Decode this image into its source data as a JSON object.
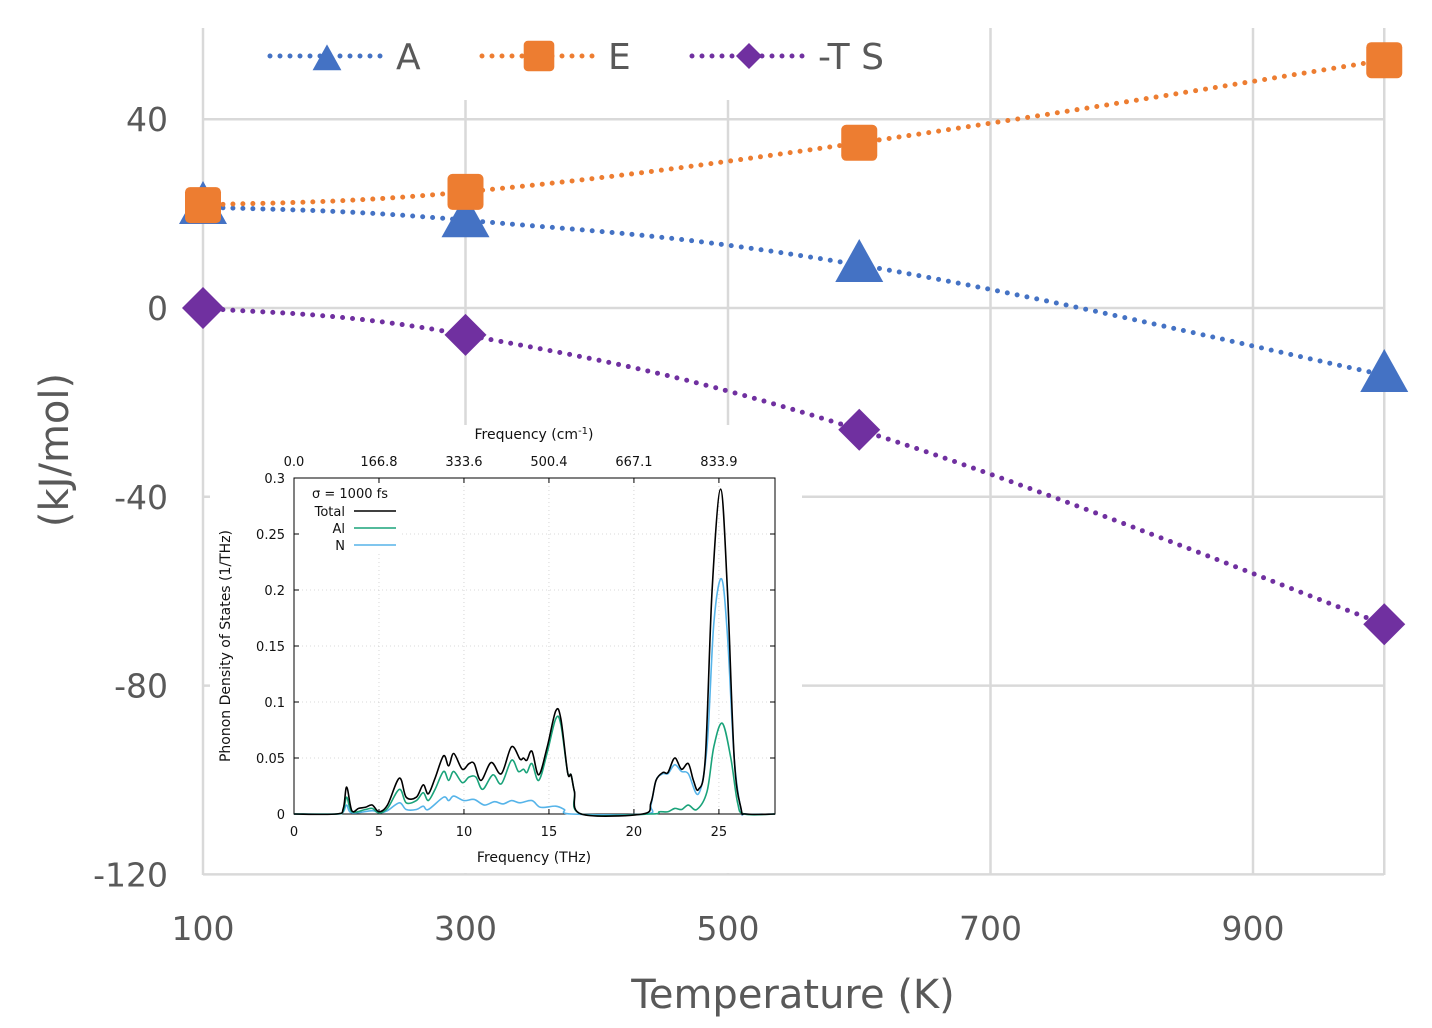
{
  "chart_data": [
    {
      "type": "line",
      "xlabel": "Temperature (K)",
      "ylabel": "(kJ/mol)",
      "xlim": [
        100,
        1000
      ],
      "ylim": [
        -120,
        60
      ],
      "xticks": [
        100,
        300,
        500,
        700,
        900
      ],
      "yticks": [
        40,
        0,
        -40,
        -80,
        -120
      ],
      "grid": true,
      "legend_placement": "top",
      "x": [
        100,
        300,
        600,
        1000
      ],
      "series": [
        {
          "name": "A",
          "values": [
            21.4,
            18.6,
            9.1,
            -14.2
          ],
          "color": "#4472C4",
          "marker": "triangle"
        },
        {
          "name": "E",
          "values": [
            21.8,
            24.6,
            35.0,
            52.5
          ],
          "color": "#ED7D31",
          "marker": "square"
        },
        {
          "name": "-T S",
          "values": [
            0,
            -5.7,
            -25.8,
            -67.0
          ],
          "color": "#7030A0",
          "marker": "diamond"
        }
      ]
    },
    {
      "type": "line",
      "xlabel": "Frequency (THz)",
      "x2label": "Frequency (cm",
      "x2label_sup": "-1",
      "x2label_end": ")",
      "ylabel": "Phonon Density of States (1/THz)",
      "legend_title": "σ = 1000 fs",
      "legend_placement": "top-left",
      "xlim": [
        0,
        28.3
      ],
      "ylim": [
        0,
        0.3
      ],
      "xticks": [
        "0",
        "5",
        "10",
        "15",
        "20",
        "25"
      ],
      "x2ticks": [
        "0.0",
        "166.8",
        "333.6",
        "500.4",
        "667.1",
        "833.9"
      ],
      "yticks": [
        "0",
        "0.05",
        "0.1",
        "0.15",
        "0.2",
        "0.25",
        "0.3"
      ],
      "grid": true,
      "series": [
        {
          "name": "Total",
          "color": "#000000",
          "points": [
            [
              0,
              0
            ],
            [
              2.5,
              0
            ],
            [
              2.9,
              0.005
            ],
            [
              3.1,
              0.024
            ],
            [
              3.4,
              0.003
            ],
            [
              3.8,
              0.005
            ],
            [
              4.2,
              0.006
            ],
            [
              4.6,
              0.008
            ],
            [
              5,
              0.002
            ],
            [
              5.5,
              0.008
            ],
            [
              6.2,
              0.032
            ],
            [
              6.6,
              0.015
            ],
            [
              7.2,
              0.015
            ],
            [
              7.6,
              0.026
            ],
            [
              7.9,
              0.018
            ],
            [
              8.3,
              0.032
            ],
            [
              8.8,
              0.052
            ],
            [
              9.1,
              0.043
            ],
            [
              9.4,
              0.054
            ],
            [
              9.9,
              0.04
            ],
            [
              10.3,
              0.045
            ],
            [
              10.6,
              0.045
            ],
            [
              11,
              0.03
            ],
            [
              11.6,
              0.046
            ],
            [
              12.2,
              0.036
            ],
            [
              12.8,
              0.06
            ],
            [
              13.3,
              0.049
            ],
            [
              13.5,
              0.05
            ],
            [
              13.7,
              0.048
            ],
            [
              14,
              0.056
            ],
            [
              14.4,
              0.035
            ],
            [
              14.9,
              0.06
            ],
            [
              15.4,
              0.092
            ],
            [
              15.7,
              0.085
            ],
            [
              16.1,
              0.037
            ],
            [
              16.3,
              0.035
            ],
            [
              16.5,
              0.02
            ],
            [
              16.9,
              0
            ],
            [
              20.5,
              0
            ],
            [
              21,
              0.01
            ],
            [
              21.3,
              0.03
            ],
            [
              21.7,
              0.037
            ],
            [
              22,
              0.037
            ],
            [
              22.4,
              0.05
            ],
            [
              22.8,
              0.04
            ],
            [
              23.2,
              0.045
            ],
            [
              23.5,
              0.03
            ],
            [
              23.8,
              0.022
            ],
            [
              24.2,
              0.05
            ],
            [
              24.6,
              0.2
            ],
            [
              25.1,
              0.29
            ],
            [
              25.5,
              0.2
            ],
            [
              25.9,
              0.05
            ],
            [
              26.3,
              0.005
            ],
            [
              26.6,
              0
            ],
            [
              28.3,
              0
            ]
          ]
        },
        {
          "name": "Al",
          "color": "#1AA37A",
          "points": [
            [
              0,
              0
            ],
            [
              2.5,
              0
            ],
            [
              2.9,
              0.003
            ],
            [
              3.1,
              0.015
            ],
            [
              3.4,
              0.002
            ],
            [
              4.2,
              0.004
            ],
            [
              4.6,
              0.005
            ],
            [
              5,
              0.001
            ],
            [
              5.5,
              0.005
            ],
            [
              6.2,
              0.022
            ],
            [
              6.6,
              0.01
            ],
            [
              7.2,
              0.012
            ],
            [
              7.6,
              0.019
            ],
            [
              7.9,
              0.012
            ],
            [
              8.3,
              0.022
            ],
            [
              8.8,
              0.038
            ],
            [
              9.1,
              0.03
            ],
            [
              9.4,
              0.038
            ],
            [
              9.9,
              0.028
            ],
            [
              10.3,
              0.033
            ],
            [
              10.7,
              0.033
            ],
            [
              11.1,
              0.022
            ],
            [
              11.7,
              0.035
            ],
            [
              12.2,
              0.027
            ],
            [
              12.8,
              0.048
            ],
            [
              13.2,
              0.038
            ],
            [
              13.5,
              0.04
            ],
            [
              13.7,
              0.037
            ],
            [
              14,
              0.045
            ],
            [
              14.4,
              0.03
            ],
            [
              14.9,
              0.055
            ],
            [
              15.4,
              0.085
            ],
            [
              15.7,
              0.08
            ],
            [
              16.1,
              0.037
            ],
            [
              16.3,
              0.035
            ],
            [
              16.5,
              0.02
            ],
            [
              16.9,
              0
            ],
            [
              21,
              0
            ],
            [
              21.5,
              0.002
            ],
            [
              22,
              0.002
            ],
            [
              22.4,
              0.005
            ],
            [
              22.8,
              0.004
            ],
            [
              23.2,
              0.008
            ],
            [
              23.7,
              0.004
            ],
            [
              24.3,
              0.02
            ],
            [
              24.7,
              0.06
            ],
            [
              25.2,
              0.081
            ],
            [
              25.7,
              0.05
            ],
            [
              26.1,
              0.01
            ],
            [
              26.5,
              0
            ],
            [
              28.3,
              0
            ]
          ]
        },
        {
          "name": "N",
          "color": "#56B4E9",
          "points": [
            [
              0,
              0
            ],
            [
              2.5,
              0
            ],
            [
              2.9,
              0.002
            ],
            [
              3.1,
              0.008
            ],
            [
              3.4,
              0.001
            ],
            [
              4.6,
              0.003
            ],
            [
              5,
              0.001
            ],
            [
              5.5,
              0.003
            ],
            [
              6.2,
              0.01
            ],
            [
              6.6,
              0.004
            ],
            [
              7.2,
              0.004
            ],
            [
              7.6,
              0.007
            ],
            [
              7.9,
              0.004
            ],
            [
              8.8,
              0.015
            ],
            [
              9.1,
              0.012
            ],
            [
              9.4,
              0.016
            ],
            [
              10,
              0.012
            ],
            [
              10.6,
              0.013
            ],
            [
              11.2,
              0.008
            ],
            [
              11.8,
              0.011
            ],
            [
              12.3,
              0.009
            ],
            [
              12.8,
              0.012
            ],
            [
              13.3,
              0.01
            ],
            [
              14,
              0.012
            ],
            [
              14.5,
              0.006
            ],
            [
              15.4,
              0.007
            ],
            [
              15.9,
              0.004
            ],
            [
              16.3,
              0
            ],
            [
              20.7,
              0
            ],
            [
              21,
              0.008
            ],
            [
              21.3,
              0.03
            ],
            [
              21.7,
              0.036
            ],
            [
              22,
              0.036
            ],
            [
              22.4,
              0.044
            ],
            [
              22.8,
              0.038
            ],
            [
              23.2,
              0.036
            ],
            [
              23.8,
              0.018
            ],
            [
              24.3,
              0.06
            ],
            [
              24.7,
              0.17
            ],
            [
              25.15,
              0.21
            ],
            [
              25.5,
              0.16
            ],
            [
              25.9,
              0.05
            ],
            [
              26.3,
              0.004
            ],
            [
              26.6,
              0
            ],
            [
              28.3,
              0
            ]
          ]
        }
      ]
    }
  ]
}
